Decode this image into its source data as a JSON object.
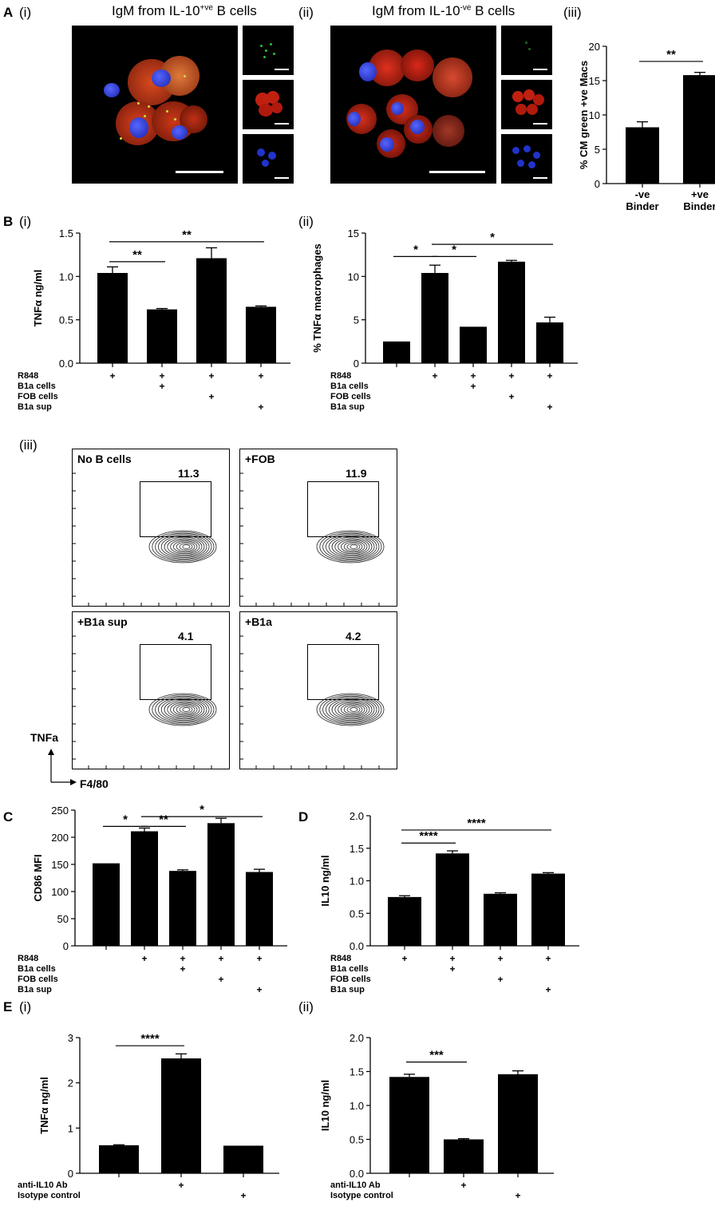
{
  "panel_labels": {
    "A": "A",
    "B": "B",
    "C": "C",
    "D": "D",
    "E": "E"
  },
  "sub_labels": {
    "i": "(i)",
    "ii": "(ii)",
    "iii": "(iii)"
  },
  "microscopy": {
    "left_title": "IgM from IL-10",
    "left_sup": "+ve",
    "left_suffix": " B cells",
    "right_title": "IgM from IL-10",
    "right_sup": "-ve",
    "right_suffix": " B cells",
    "channel_colors": {
      "green": "#2fbf3a",
      "red": "#e0301e",
      "blue": "#2233dd"
    }
  },
  "flow": {
    "panels": [
      {
        "label": "No B cells",
        "gate": "11.3"
      },
      {
        "label": "+FOB",
        "gate": "11.9"
      },
      {
        "label": "+B1a sup",
        "gate": "4.1"
      },
      {
        "label": "+B1a",
        "gate": "4.2"
      }
    ],
    "y_axis": "TNFa",
    "x_axis": "F4/80"
  },
  "chart_data": [
    {
      "id": "A_iii",
      "type": "bar",
      "categories": [
        "-ve\nBinder",
        "+ve\nBinder"
      ],
      "values": [
        8.2,
        15.8
      ],
      "errors": [
        0.8,
        0.4
      ],
      "ylabel": "% CM green +ve Macs",
      "ylim": [
        0,
        20
      ],
      "yticks": [
        0,
        5,
        10,
        15,
        20
      ],
      "sig": [
        {
          "from": 0,
          "to": 1,
          "label": "**",
          "level": 17.8
        }
      ]
    },
    {
      "id": "B_i",
      "type": "bar",
      "categories": [
        "1",
        "2",
        "3",
        "4"
      ],
      "values": [
        1.04,
        0.62,
        1.21,
        0.65
      ],
      "errors": [
        0.07,
        0.01,
        0.12,
        0.01
      ],
      "ylabel": "TNFα ng/ml",
      "ylim": [
        0,
        1.5
      ],
      "yticks": [
        0.0,
        0.5,
        1.0,
        1.5
      ],
      "tickfmt": 1,
      "sig": [
        {
          "from": 0,
          "to": 1,
          "label": "**",
          "level": 1.17
        },
        {
          "from": 0,
          "to": 3,
          "label": "**",
          "level": 1.4
        }
      ],
      "conditions": [
        {
          "label": "R848",
          "marks": [
            1,
            1,
            1,
            1
          ]
        },
        {
          "label": "B1a cells",
          "marks": [
            0,
            1,
            0,
            0
          ]
        },
        {
          "label": "FOB cells",
          "marks": [
            0,
            0,
            1,
            0
          ]
        },
        {
          "label": "B1a sup",
          "marks": [
            0,
            0,
            0,
            1
          ]
        }
      ]
    },
    {
      "id": "B_ii",
      "type": "bar",
      "categories": [
        "1",
        "2",
        "3",
        "4",
        "5"
      ],
      "values": [
        2.5,
        10.4,
        4.2,
        11.7,
        4.7
      ],
      "errors": [
        0,
        0.9,
        0,
        0.15,
        0.6
      ],
      "ylabel": "% TNFα macrophages",
      "ylim": [
        0,
        15
      ],
      "yticks": [
        0,
        5,
        10,
        15
      ],
      "sig": [
        {
          "from": 0,
          "to": 1,
          "label": "*",
          "level": 12.3
        },
        {
          "from": 1,
          "to": 2,
          "label": "*",
          "level": 12.3
        },
        {
          "from": 1,
          "to": 4,
          "label": "*",
          "level": 13.7
        }
      ],
      "conditions": [
        {
          "label": "R848",
          "marks": [
            0,
            1,
            1,
            1,
            1
          ]
        },
        {
          "label": "B1a cells",
          "marks": [
            0,
            0,
            1,
            0,
            0
          ]
        },
        {
          "label": "FOB cells",
          "marks": [
            0,
            0,
            0,
            1,
            0
          ]
        },
        {
          "label": "B1a sup",
          "marks": [
            0,
            0,
            0,
            0,
            1
          ]
        }
      ]
    },
    {
      "id": "C",
      "type": "bar",
      "categories": [
        "1",
        "2",
        "3",
        "4",
        "5"
      ],
      "values": [
        152,
        211,
        138,
        226,
        136
      ],
      "errors": [
        0,
        6,
        2,
        9,
        5
      ],
      "ylabel": "CD86 MFI",
      "ylim": [
        0,
        250
      ],
      "yticks": [
        0,
        50,
        100,
        150,
        200,
        250
      ],
      "sig": [
        {
          "from": 0,
          "to": 1,
          "label": "*",
          "level": 220
        },
        {
          "from": 1,
          "to": 2,
          "label": "**",
          "level": 220
        },
        {
          "from": 1,
          "to": 4,
          "label": "*",
          "level": 238
        }
      ],
      "conditions": [
        {
          "label": "R848",
          "marks": [
            0,
            1,
            1,
            1,
            1
          ]
        },
        {
          "label": "B1a cells",
          "marks": [
            0,
            0,
            1,
            0,
            0
          ]
        },
        {
          "label": "FOB cells",
          "marks": [
            0,
            0,
            0,
            1,
            0
          ]
        },
        {
          "label": "B1a sup",
          "marks": [
            0,
            0,
            0,
            0,
            1
          ]
        }
      ]
    },
    {
      "id": "D",
      "type": "bar",
      "categories": [
        "1",
        "2",
        "3",
        "4"
      ],
      "values": [
        0.75,
        1.42,
        0.8,
        1.11
      ],
      "errors": [
        0.02,
        0.04,
        0.015,
        0.015
      ],
      "ylabel": "IL10 ng/ml",
      "ylim": [
        0,
        2.0
      ],
      "yticks": [
        0.0,
        0.5,
        1.0,
        1.5,
        2.0
      ],
      "tickfmt": 1,
      "sig": [
        {
          "from": 0,
          "to": 1,
          "label": "****",
          "level": 1.58
        },
        {
          "from": 0,
          "to": 3,
          "label": "****",
          "level": 1.78
        }
      ],
      "conditions": [
        {
          "label": "R848",
          "marks": [
            1,
            1,
            1,
            1
          ]
        },
        {
          "label": "B1a cells",
          "marks": [
            0,
            1,
            0,
            0
          ]
        },
        {
          "label": "FOB cells",
          "marks": [
            0,
            0,
            1,
            0
          ]
        },
        {
          "label": "B1a sup",
          "marks": [
            0,
            0,
            0,
            1
          ]
        }
      ]
    },
    {
      "id": "E_i",
      "type": "bar",
      "categories": [
        "1",
        "2",
        "3"
      ],
      "values": [
        0.62,
        2.54,
        0.61
      ],
      "errors": [
        0.01,
        0.1,
        0
      ],
      "ylabel": "TNFα ng/ml",
      "ylim": [
        0,
        3
      ],
      "yticks": [
        0,
        1,
        2,
        3
      ],
      "sig": [
        {
          "from": 0,
          "to": 1,
          "label": "****",
          "level": 2.82
        }
      ],
      "conditions": [
        {
          "label": "anti-IL10 Ab",
          "marks": [
            0,
            1,
            0
          ]
        },
        {
          "label": "Isotype control",
          "marks": [
            0,
            0,
            1
          ]
        }
      ]
    },
    {
      "id": "E_ii",
      "type": "bar",
      "categories": [
        "1",
        "2",
        "3"
      ],
      "values": [
        1.42,
        0.5,
        1.46
      ],
      "errors": [
        0.04,
        0.01,
        0.05
      ],
      "ylabel": "IL10 ng/ml",
      "ylim": [
        0,
        2.0
      ],
      "yticks": [
        0.0,
        0.5,
        1.0,
        1.5,
        2.0
      ],
      "tickfmt": 1,
      "sig": [
        {
          "from": 0,
          "to": 1,
          "label": "***",
          "level": 1.64
        }
      ],
      "conditions": [
        {
          "label": "anti-IL10 Ab",
          "marks": [
            0,
            1,
            0
          ]
        },
        {
          "label": "Isotype control",
          "marks": [
            0,
            0,
            1
          ]
        }
      ]
    }
  ]
}
